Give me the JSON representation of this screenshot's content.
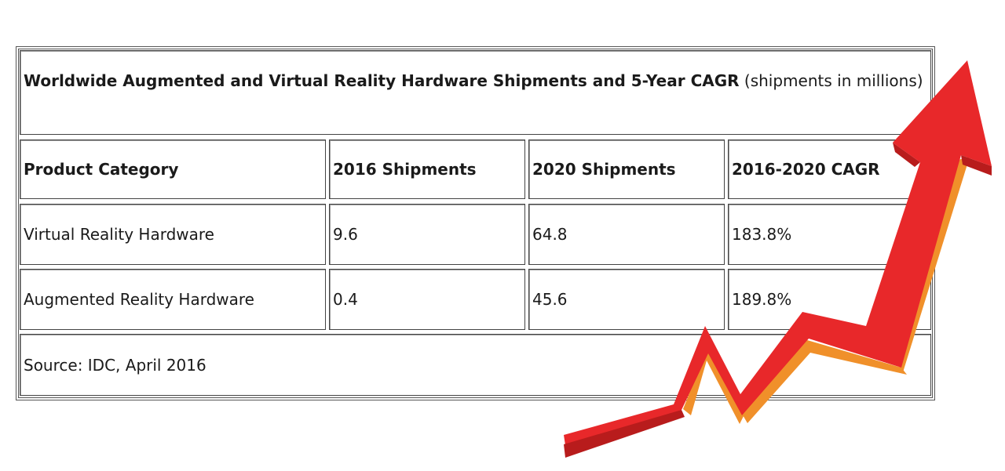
{
  "chart_data": {
    "type": "table",
    "title_bold": "Worldwide Augmented and Virtual Reality Hardware Shipments and 5-Year CAGR",
    "title_rest": " (shipments in millions)",
    "columns": [
      "Product Category",
      "2016 Shipments",
      "2020 Shipments",
      "2016-2020 CAGR"
    ],
    "rows": [
      [
        "Virtual Reality Hardware",
        "9.6",
        "64.8",
        "183.8%"
      ],
      [
        "Augmented Reality Hardware",
        "0.4",
        "45.6",
        "189.8%"
      ]
    ],
    "footer": "Source: IDC, April 2016"
  },
  "colors": {
    "arrow_red": "#e8282a",
    "arrow_dark": "#b81c1c",
    "arrow_orange": "#f0902a"
  }
}
